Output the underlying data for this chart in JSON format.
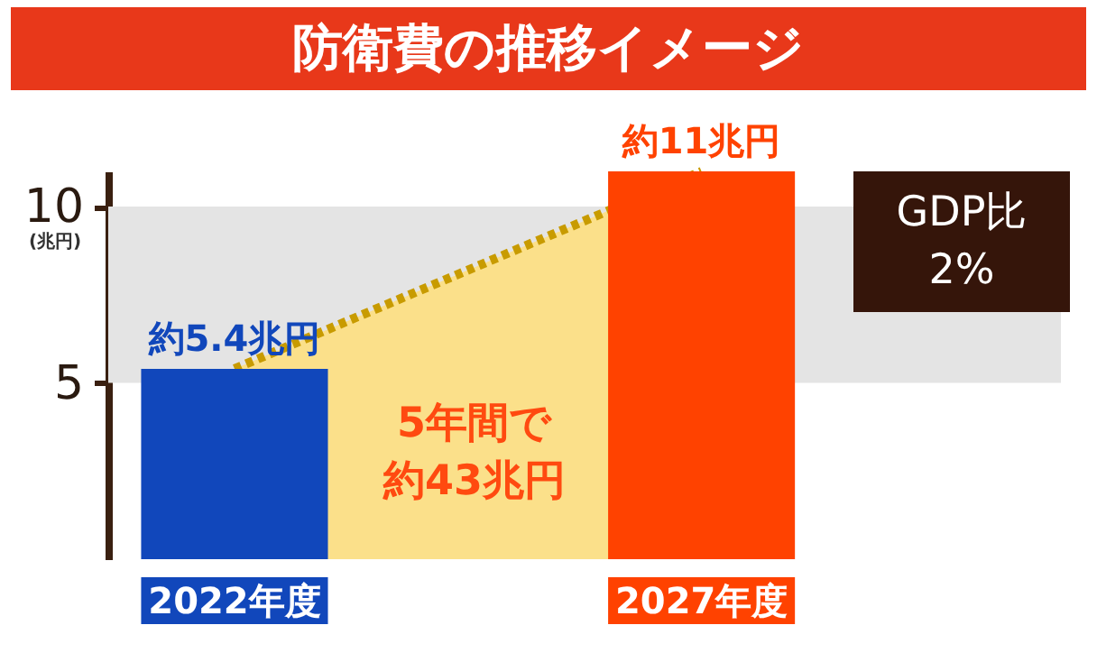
{
  "chart_data": {
    "type": "bar",
    "title": "防衛費の推移イメージ",
    "ylabel": "(兆円)",
    "categories": [
      "2022年度",
      "2027年度"
    ],
    "series": [
      {
        "type": "area",
        "color": "#fbe08a",
        "values": [
          5.4,
          11
        ]
      },
      {
        "colors": [
          "#1147bb",
          "#ff4200"
        ],
        "values": [
          5.4,
          11
        ],
        "value_labels": [
          "約5.4兆円",
          "約11兆円"
        ]
      }
    ],
    "ylim": [
      0,
      11
    ],
    "yticks": [
      5,
      10
    ],
    "bands": [
      {
        "axis": "y",
        "from": 5,
        "to": 10,
        "color": "#e4e4e4"
      }
    ],
    "line_style": "dotted",
    "annotations": [
      "5年間で",
      "約43兆円",
      "GDP比",
      "2%"
    ],
    "grid": false
  }
}
